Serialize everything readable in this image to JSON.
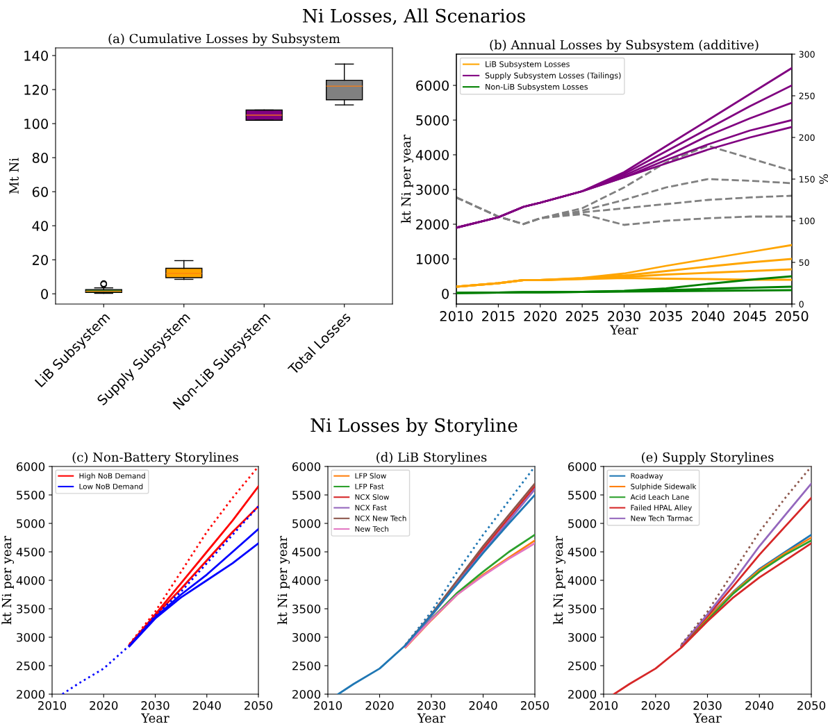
{
  "chart_data": [
    {
      "type": "box",
      "title": "(a) Cumulative Losses by Subsystem",
      "ylabel": "Mt Ni",
      "annotations": [
        "Ni Losses, All Scenarios"
      ],
      "categories": [
        "LiB Subsystem",
        "Supply Subsystem",
        "Non-LiB Subsystem",
        "Total Losses"
      ],
      "colors": [
        "#2e7d1e",
        "#ffa500",
        "#800080",
        "#808080"
      ],
      "boxes": [
        {
          "low": 0.3,
          "q1": 0.8,
          "median": 1.5,
          "q3": 2.5,
          "high": 3.5,
          "outliers": [
            5.5,
            6
          ]
        },
        {
          "low": 8.5,
          "q1": 9.5,
          "median": 12,
          "q3": 15,
          "high": 19.5
        },
        {
          "low": 102,
          "q1": 102,
          "median": 105,
          "q3": 108,
          "high": 108
        },
        {
          "low": 111,
          "q1": 114,
          "median": 122,
          "q3": 125.5,
          "high": 135
        }
      ],
      "ylim": [
        -6,
        144.5
      ],
      "yticks": [
        0,
        20,
        40,
        60,
        80,
        100,
        120,
        140
      ],
      "grid": false
    },
    {
      "type": "line",
      "title": "(b) Annual Losses by Subsystem (additive)",
      "xlabel": "Year",
      "ylabel": "kt Ni per year",
      "y2label": "%",
      "xlim": [
        2010,
        2050
      ],
      "xticks": [
        2010,
        2015,
        2020,
        2025,
        2030,
        2035,
        2040,
        2045,
        2050
      ],
      "ylim": [
        -300,
        6900
      ],
      "yticks": [
        0,
        1000,
        2000,
        3000,
        4000,
        5000,
        6000
      ],
      "y2lim": [
        0,
        300
      ],
      "y2ticks": [
        0,
        50,
        100,
        150,
        200,
        250,
        300
      ],
      "legend": "top left",
      "grid": false,
      "x": [
        2010,
        2015,
        2018,
        2020,
        2025,
        2030,
        2035,
        2040,
        2045,
        2050
      ],
      "series": [
        {
          "name": "LiB Subsystem Losses",
          "color": "#ffa500",
          "values": [
            200,
            300,
            390,
            390,
            420,
            450,
            430,
            420,
            400,
            400
          ]
        },
        {
          "color": "#ffa500",
          "values": [
            200,
            300,
            390,
            390,
            430,
            480,
            550,
            600,
            650,
            700
          ]
        },
        {
          "color": "#ffa500",
          "values": [
            200,
            300,
            390,
            390,
            440,
            520,
            650,
            780,
            900,
            1000
          ]
        },
        {
          "color": "#ffa500",
          "values": [
            200,
            300,
            390,
            390,
            450,
            580,
            800,
            1000,
            1200,
            1400
          ]
        },
        {
          "name": "Supply Subsystem Losses (Tailings)",
          "color": "#800080",
          "values": [
            1900,
            2200,
            2500,
            2620,
            2950,
            3350,
            3750,
            4150,
            4500,
            4800
          ]
        },
        {
          "color": "#800080",
          "values": [
            1900,
            2200,
            2500,
            2620,
            2950,
            3350,
            3850,
            4300,
            4700,
            5000
          ]
        },
        {
          "color": "#800080",
          "values": [
            1900,
            2200,
            2500,
            2620,
            2950,
            3400,
            3950,
            4550,
            5050,
            5500
          ]
        },
        {
          "color": "#800080",
          "values": [
            1900,
            2200,
            2500,
            2620,
            2950,
            3450,
            4100,
            4750,
            5400,
            6000
          ]
        },
        {
          "color": "#800080",
          "values": [
            1900,
            2200,
            2500,
            2620,
            2950,
            3500,
            4250,
            5000,
            5750,
            6500
          ]
        },
        {
          "name": "Non-LiB Subsystem Losses",
          "color": "#008000",
          "values": [
            20,
            30,
            40,
            40,
            50,
            60,
            70,
            80,
            90,
            100
          ]
        },
        {
          "color": "#008000",
          "values": [
            20,
            30,
            40,
            40,
            50,
            70,
            100,
            140,
            170,
            200
          ]
        },
        {
          "color": "#008000",
          "values": [
            20,
            30,
            40,
            40,
            50,
            80,
            150,
            280,
            400,
            500
          ]
        },
        {
          "axis": "y2",
          "line_style": "dashed",
          "color": "#808080",
          "values": [
            128,
            105,
            96,
            103,
            108,
            95,
            100,
            103,
            105,
            105
          ]
        },
        {
          "axis": "y2",
          "line_style": "dashed",
          "color": "#808080",
          "values": [
            128,
            105,
            96,
            103,
            110,
            115,
            120,
            125,
            128,
            130
          ]
        },
        {
          "axis": "y2",
          "line_style": "dashed",
          "color": "#808080",
          "values": [
            128,
            105,
            96,
            103,
            112,
            125,
            140,
            150,
            148,
            145
          ]
        },
        {
          "axis": "y2",
          "line_style": "dashed",
          "color": "#808080",
          "values": [
            128,
            105,
            96,
            103,
            115,
            140,
            170,
            190,
            175,
            160
          ]
        }
      ]
    },
    {
      "type": "line",
      "title": "(c) Non-Battery Storylines",
      "xlabel": "Year",
      "ylabel": "kt Ni per year",
      "annotations": [
        "Ni Losses by Storyline"
      ],
      "xlim": [
        2010,
        2050
      ],
      "xticks": [
        2010,
        2020,
        2030,
        2040,
        2050
      ],
      "ylim": [
        2000,
        6000
      ],
      "yticks": [
        2000,
        2500,
        3000,
        3500,
        4000,
        4500,
        5000,
        5500,
        6000
      ],
      "legend": "top left",
      "grid": false,
      "x": [
        2012,
        2015,
        2020,
        2025,
        2030,
        2035,
        2040,
        2045,
        2050
      ],
      "series": [
        {
          "name": "High NoB Demand",
          "color": "#ff0000",
          "values": [
            null,
            null,
            null,
            2870,
            3400,
            3950,
            4500,
            5050,
            5650
          ]
        },
        {
          "color": "#ff0000",
          "values": [
            null,
            null,
            null,
            2860,
            3380,
            3850,
            4350,
            4850,
            5300
          ]
        },
        {
          "color": "#ff0000",
          "line_style": "dotted",
          "values": [
            null,
            null,
            null,
            2880,
            3450,
            4150,
            4850,
            5450,
            6000
          ]
        },
        {
          "name": "Low NoB Demand",
          "color": "#0000ff",
          "values": [
            null,
            null,
            null,
            2850,
            3350,
            3750,
            4100,
            4500,
            4900
          ]
        },
        {
          "color": "#0000ff",
          "values": [
            null,
            null,
            null,
            2840,
            3330,
            3700,
            4000,
            4300,
            4650
          ]
        },
        {
          "color": "#0000ff",
          "line_style": "dotted",
          "values": [
            2000,
            2180,
            2450,
            2855,
            3380,
            3800,
            4300,
            4800,
            5300
          ]
        }
      ]
    },
    {
      "type": "line",
      "title": "(d) LiB Storylines",
      "xlabel": "Year",
      "ylabel": "kt Ni per year",
      "xlim": [
        2010,
        2050
      ],
      "xticks": [
        2010,
        2020,
        2030,
        2040,
        2050
      ],
      "ylim": [
        2000,
        6000
      ],
      "yticks": [
        2000,
        2500,
        3000,
        3500,
        4000,
        4500,
        5000,
        5500,
        6000
      ],
      "legend": "top left",
      "grid": false,
      "x": [
        2012,
        2015,
        2020,
        2025,
        2030,
        2035,
        2040,
        2045,
        2050
      ],
      "series": [
        {
          "color": "#1f77b4",
          "line_style": "dotted",
          "values": [
            null,
            null,
            null,
            2870,
            3450,
            4150,
            4800,
            5400,
            6000
          ]
        },
        {
          "name": "LFP Slow",
          "color": "#ff7f0e",
          "values": [
            null,
            null,
            null,
            2820,
            3300,
            3750,
            4100,
            4400,
            4700
          ]
        },
        {
          "name": "LFP Fast",
          "color": "#2ca02c",
          "values": [
            null,
            null,
            null,
            2840,
            3320,
            3780,
            4150,
            4500,
            4800
          ]
        },
        {
          "name": "NCX Slow",
          "color": "#d62728",
          "values": [
            null,
            null,
            null,
            2850,
            3380,
            3950,
            4550,
            5100,
            5650
          ]
        },
        {
          "name": "NCX Fast",
          "color": "#9467bd",
          "values": [
            null,
            null,
            null,
            2855,
            3370,
            3950,
            4500,
            5050,
            5600
          ]
        },
        {
          "name": "NCX New Tech",
          "color": "#8c564b",
          "values": [
            null,
            null,
            null,
            2865,
            3400,
            4000,
            4600,
            5150,
            5700
          ]
        },
        {
          "name": "New Tech",
          "color": "#e377c2",
          "values": [
            null,
            null,
            null,
            2830,
            3310,
            3750,
            4080,
            4380,
            4650
          ]
        },
        {
          "color": "#1f77b4",
          "values": [
            2000,
            2180,
            2450,
            2860,
            3390,
            3930,
            4480,
            5000,
            5500
          ]
        }
      ]
    },
    {
      "type": "line",
      "title": "(e) Supply Storylines",
      "xlabel": "Year",
      "ylabel": "kt Ni per year",
      "xlim": [
        2010,
        2050
      ],
      "xticks": [
        2010,
        2020,
        2030,
        2040,
        2050
      ],
      "ylim": [
        2000,
        6000
      ],
      "yticks": [
        2000,
        2500,
        3000,
        3500,
        4000,
        4500,
        5000,
        5500,
        6000
      ],
      "legend": "top left",
      "grid": false,
      "x": [
        2012,
        2015,
        2020,
        2025,
        2030,
        2035,
        2040,
        2045,
        2050
      ],
      "series": [
        {
          "name": "Roadway",
          "color": "#1f77b4",
          "values": [
            null,
            null,
            null,
            2845,
            3340,
            3800,
            4200,
            4500,
            4800
          ]
        },
        {
          "name": "Sulphide Sidewalk",
          "color": "#ff7f0e",
          "values": [
            null,
            null,
            null,
            2835,
            3330,
            3790,
            4180,
            4480,
            4750
          ]
        },
        {
          "name": "Acid Leach Lane",
          "color": "#2ca02c",
          "values": [
            null,
            null,
            null,
            2830,
            3300,
            3770,
            4150,
            4450,
            4700
          ]
        },
        {
          "name": "Failed HPAL Alley",
          "color": "#d62728",
          "values": [
            null,
            null,
            null,
            2855,
            3370,
            3900,
            4450,
            4950,
            5450
          ]
        },
        {
          "name": "New Tech Tarmac",
          "color": "#9467bd",
          "values": [
            null,
            null,
            null,
            2865,
            3400,
            3980,
            4600,
            5150,
            5700
          ]
        },
        {
          "color": "#8c564b",
          "line_style": "dotted",
          "values": [
            null,
            null,
            null,
            2875,
            3450,
            4150,
            4850,
            5450,
            6000
          ]
        },
        {
          "color": "#d62728",
          "values": [
            2000,
            2180,
            2450,
            2820,
            3280,
            3700,
            4050,
            4350,
            4650
          ]
        }
      ]
    }
  ]
}
